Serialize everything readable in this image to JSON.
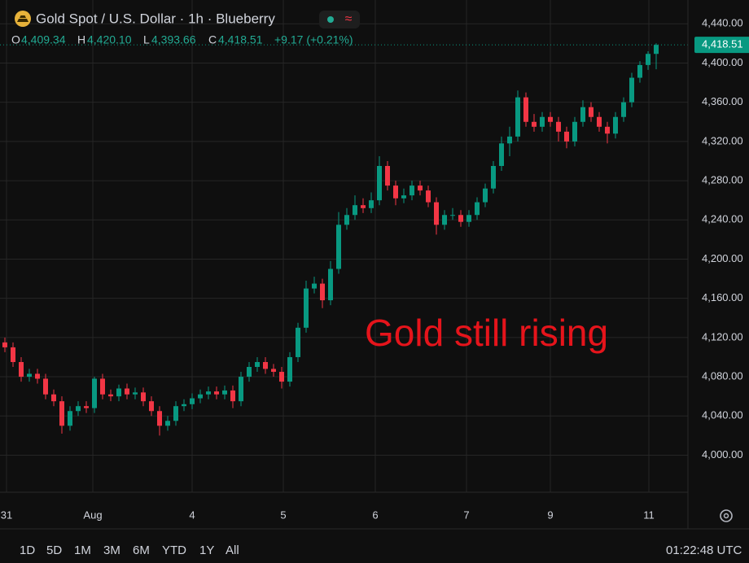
{
  "chart_data": {
    "type": "candlestick",
    "title": "Gold Spot / U.S. Dollar · 1h · Blueberry",
    "ohlc_header": {
      "o": "O",
      "open": "4,409.34",
      "h": "H",
      "high": "4,420.10",
      "l": "L",
      "low": "4,393.66",
      "c": "C",
      "close": "4,418.51",
      "change": "+9.17 (+0.21%)"
    },
    "annotation": "Gold still rising",
    "last_price_label": "4,418.51",
    "up_color": "#089981",
    "down_color": "#f23645",
    "grid": true,
    "open": [
      4115,
      4110,
      4095,
      4080,
      4083,
      4078,
      4062,
      4055,
      4030,
      4045,
      4050,
      4048,
      4078,
      4062,
      4060,
      4068,
      4062,
      4064,
      4055,
      4045,
      4030,
      4035,
      4050,
      4052,
      4058,
      4062,
      4065,
      4062,
      4066,
      4055,
      4080,
      4090,
      4095,
      4088,
      4085,
      4075,
      4100,
      4130,
      4170,
      4175,
      4158,
      4190,
      4235,
      4245,
      4255,
      4252,
      4260,
      4295,
      4275,
      4262,
      4265,
      4275,
      4270,
      4258,
      4235,
      4245,
      4245,
      4238,
      4245,
      4258,
      4272,
      4295,
      4318,
      4325,
      4365,
      4340,
      4335,
      4345,
      4340,
      4330,
      4320,
      4340,
      4355,
      4345,
      4335,
      4328,
      4345,
      4360,
      4385,
      4398,
      4409.34
    ],
    "high": [
      4120,
      4115,
      4100,
      4088,
      4088,
      4083,
      4067,
      4060,
      4050,
      4055,
      4055,
      4080,
      4083,
      4067,
      4072,
      4073,
      4069,
      4069,
      4060,
      4050,
      4040,
      4055,
      4057,
      4063,
      4067,
      4070,
      4070,
      4071,
      4071,
      4085,
      4095,
      4100,
      4100,
      4093,
      4090,
      4105,
      4135,
      4178,
      4182,
      4180,
      4198,
      4248,
      4252,
      4265,
      4262,
      4268,
      4305,
      4300,
      4280,
      4272,
      4280,
      4280,
      4275,
      4263,
      4250,
      4252,
      4250,
      4250,
      4263,
      4277,
      4300,
      4325,
      4335,
      4372,
      4370,
      4348,
      4350,
      4350,
      4345,
      4335,
      4345,
      4362,
      4360,
      4350,
      4340,
      4350,
      4365,
      4390,
      4402,
      4412,
      4420.1
    ],
    "low": [
      4105,
      4090,
      4075,
      4075,
      4073,
      4057,
      4050,
      4022,
      4025,
      4040,
      4043,
      4043,
      4057,
      4055,
      4055,
      4057,
      4057,
      4050,
      4040,
      4020,
      4025,
      4030,
      4045,
      4047,
      4053,
      4057,
      4057,
      4057,
      4048,
      4050,
      4075,
      4085,
      4083,
      4080,
      4068,
      4070,
      4095,
      4125,
      4165,
      4150,
      4153,
      4185,
      4230,
      4240,
      4247,
      4247,
      4255,
      4270,
      4255,
      4257,
      4260,
      4265,
      4253,
      4225,
      4230,
      4240,
      4233,
      4233,
      4240,
      4253,
      4267,
      4290,
      4305,
      4320,
      4335,
      4330,
      4330,
      4335,
      4320,
      4313,
      4315,
      4335,
      4340,
      4330,
      4318,
      4323,
      4340,
      4355,
      4380,
      4393,
      4393.66
    ],
    "close": [
      4110,
      4095,
      4080,
      4083,
      4078,
      4062,
      4055,
      4030,
      4045,
      4050,
      4048,
      4078,
      4062,
      4060,
      4068,
      4062,
      4064,
      4055,
      4045,
      4030,
      4035,
      4050,
      4052,
      4058,
      4062,
      4065,
      4062,
      4066,
      4055,
      4080,
      4090,
      4095,
      4088,
      4085,
      4075,
      4100,
      4130,
      4170,
      4175,
      4158,
      4190,
      4235,
      4245,
      4255,
      4252,
      4260,
      4295,
      4275,
      4262,
      4265,
      4275,
      4270,
      4258,
      4235,
      4245,
      4245,
      4238,
      4245,
      4258,
      4272,
      4295,
      4318,
      4325,
      4365,
      4340,
      4335,
      4345,
      4340,
      4330,
      4320,
      4340,
      4355,
      4345,
      4335,
      4328,
      4345,
      4360,
      4385,
      4398,
      4409.34,
      4418.51
    ],
    "xlim": [
      -0.6,
      83.9
    ],
    "xticks": [
      {
        "value": 0.2,
        "label": "31"
      },
      {
        "value": 10.8,
        "label": "Aug"
      },
      {
        "value": 23,
        "label": "4"
      },
      {
        "value": 34.2,
        "label": "5"
      },
      {
        "value": 45.5,
        "label": "6"
      },
      {
        "value": 56.7,
        "label": "7"
      },
      {
        "value": 67,
        "label": "9"
      },
      {
        "value": 79.1,
        "label": "11"
      }
    ],
    "ylim": [
      3962.2,
      4464.3
    ],
    "yticks": [
      {
        "value": 4000,
        "label": "4,000.00"
      },
      {
        "value": 4040,
        "label": "4,040.00"
      },
      {
        "value": 4080,
        "label": "4,080.00"
      },
      {
        "value": 4120,
        "label": "4,120.00"
      },
      {
        "value": 4160,
        "label": "4,160.00"
      },
      {
        "value": 4200,
        "label": "4,200.00"
      },
      {
        "value": 4240,
        "label": "4,240.00"
      },
      {
        "value": 4280,
        "label": "4,280.00"
      },
      {
        "value": 4320,
        "label": "4,320.00"
      },
      {
        "value": 4360,
        "label": "4,360.00"
      },
      {
        "value": 4400,
        "label": "4,400.00"
      },
      {
        "value": 4440,
        "label": "4,440.00"
      }
    ]
  },
  "toolbar": {
    "ranges": [
      "1D",
      "5D",
      "1M",
      "3M",
      "6M",
      "YTD",
      "1Y",
      "All"
    ],
    "clock": "01:22:48 UTC"
  }
}
